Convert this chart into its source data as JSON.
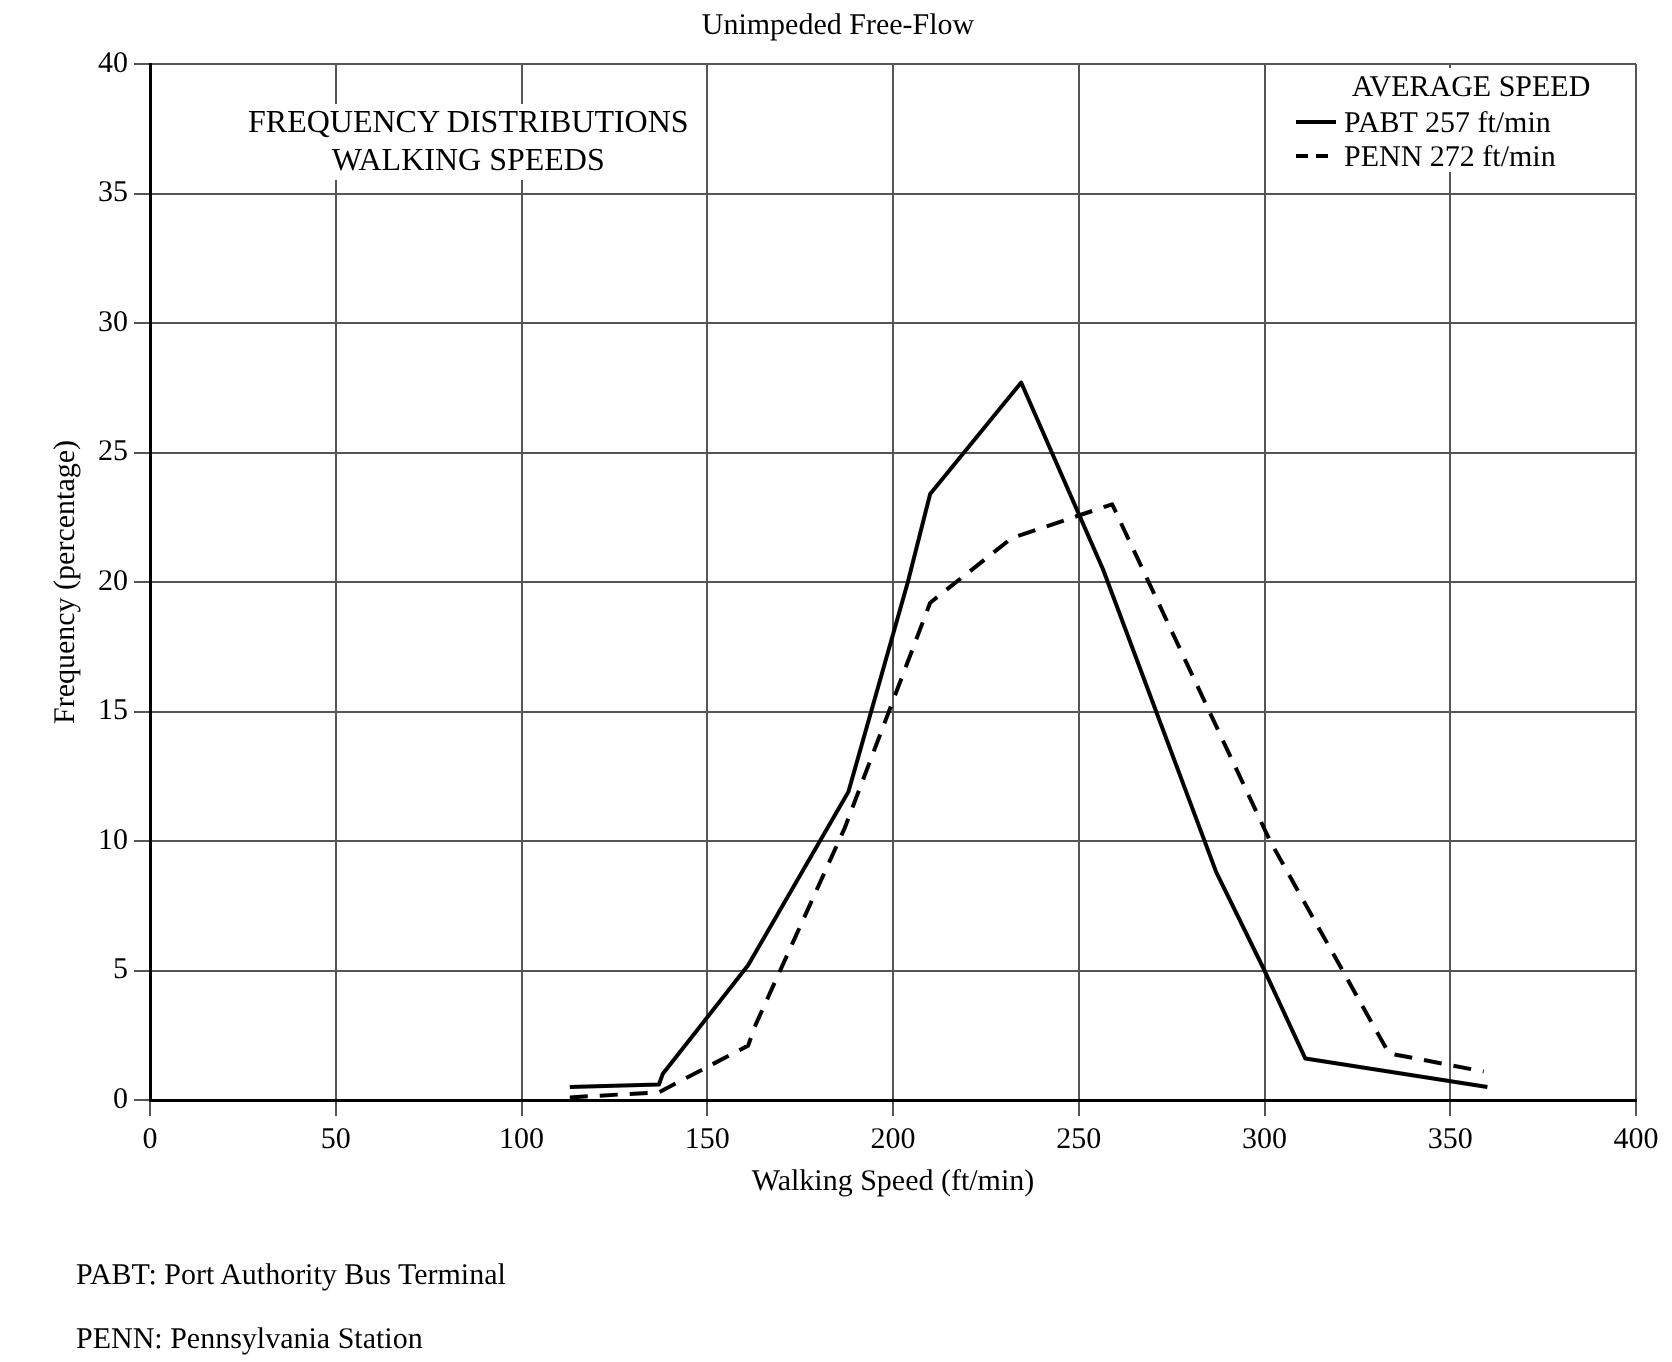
{
  "chart_data": {
    "type": "line",
    "title": "Unimpeded Free-Flow",
    "subtitle": "FREQUENCY DISTRIBUTIONS\nWALKING SPEEDS",
    "xlabel": "Walking Speed (ft/min)",
    "ylabel": "Frequency (percentage)",
    "legend_title": "AVERAGE SPEED",
    "series": [
      {
        "name": "PABT 257 ft/min",
        "color": "#000000",
        "line_style": "solid",
        "x": [
          113,
          137,
          138,
          161,
          188,
          204,
          210,
          234.5,
          256.5,
          287,
          300,
          311,
          360
        ],
        "values": [
          0.5,
          0.6,
          1.0,
          5.2,
          11.9,
          20,
          23.4,
          27.7,
          20.5,
          8.8,
          5,
          1.6,
          0.5
        ]
      },
      {
        "name": "PENN 272 ft/min",
        "color": "#000000",
        "line_style": "dashed",
        "x": [
          113,
          137,
          161,
          163,
          187,
          210,
          232,
          259,
          301.5,
          333.5,
          359
        ],
        "values": [
          0.1,
          0.3,
          2.1,
          2.9,
          10.5,
          19.2,
          21.7,
          23,
          10,
          1.8,
          1.1
        ]
      }
    ],
    "xlim": [
      0,
      400
    ],
    "xticks": [
      0,
      50,
      100,
      150,
      200,
      250,
      300,
      350,
      400
    ],
    "ylim": [
      0,
      40
    ],
    "yticks": [
      0,
      5,
      10,
      15,
      20,
      25,
      30,
      35,
      40
    ],
    "grid": true,
    "legend": "top right",
    "marker": "none",
    "annotations": [
      "PABT: Port Authority Bus Terminal",
      "PENN: Pennsylvania Station"
    ]
  }
}
